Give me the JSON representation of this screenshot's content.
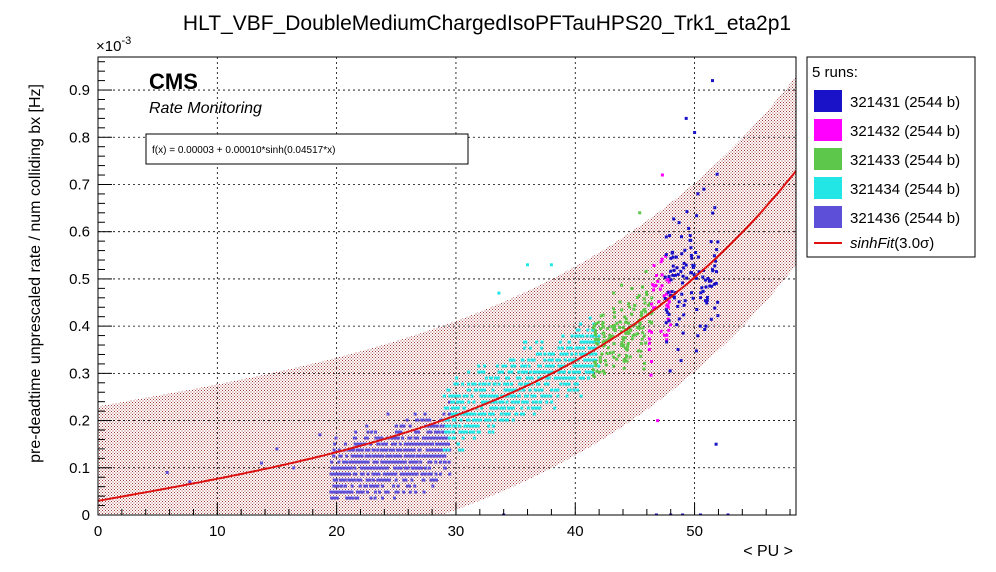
{
  "chart_data": {
    "type": "scatter",
    "title": "HLT_VBF_DoubleMediumChargedIsoPFTauHPS20_Trk1_eta2p1",
    "xlabel": "< PU >",
    "ylabel": "pre-deadtime unprescaled rate / num colliding bx [Hz]",
    "y_exponent_label": "×10",
    "y_exponent_power": "-3",
    "xlim": [
      0,
      58.5
    ],
    "ylim": [
      0,
      0.00097
    ],
    "x_ticks": [
      "0",
      "10",
      "20",
      "30",
      "40",
      "50"
    ],
    "y_ticks": [
      "0",
      "0.1",
      "0.2",
      "0.3",
      "0.4",
      "0.5",
      "0.6",
      "0.7",
      "0.8",
      "0.9"
    ],
    "grid": true,
    "legend_position": "right",
    "legend_header": "5 runs:",
    "annotations": {
      "experiment": "CMS",
      "subtitle": "Rate Monitoring",
      "fit_formula": "f(x) = 0.00003 + 0.00010*sinh(0.04517*x)"
    },
    "fit": {
      "name": "sinhFit",
      "sigma_label": "(3.0σ)",
      "a": 3e-05,
      "b": 0.0001,
      "c": 0.04517,
      "band_half_width": 0.0002,
      "color": "#dd1111",
      "band_color": "#a33a3a"
    },
    "series": [
      {
        "name": "321431 (2544 b)",
        "color": "#1a12c8",
        "x_range": [
          47.5,
          52.0
        ],
        "y_center_offset": 0.0,
        "spread": 0.00012,
        "count": 120
      },
      {
        "name": "321432 (2544 b)",
        "color": "#ff00ff",
        "x_range": [
          46.2,
          48.0
        ],
        "y_center_offset": 0.0,
        "spread": 0.0001,
        "count": 45
      },
      {
        "name": "321433 (2544 b)",
        "color": "#5cc74a",
        "x_range": [
          41.5,
          46.5
        ],
        "y_center_offset": 0.0,
        "spread": 7e-05,
        "count": 160
      },
      {
        "name": "321434 (2544 b)",
        "color": "#22e6e6",
        "x_range": [
          29.0,
          42.0
        ],
        "y_center_offset": 0.0,
        "spread": 6e-05,
        "count": 620
      },
      {
        "name": "321436 (2544 b)",
        "color": "#5d4fd8",
        "x_range": [
          19.5,
          29.5
        ],
        "y_center_offset": -5e-05,
        "spread": 6e-05,
        "count": 620
      }
    ],
    "outliers": [
      {
        "x": 51.5,
        "y": 0.00092,
        "series": 0
      },
      {
        "x": 49.3,
        "y": 0.00084,
        "series": 0
      },
      {
        "x": 50.0,
        "y": 0.00081,
        "series": 0
      },
      {
        "x": 51.8,
        "y": 0.00015,
        "series": 0
      },
      {
        "x": 47.3,
        "y": 0.00072,
        "series": 1
      },
      {
        "x": 46.9,
        "y": 0.0002,
        "series": 1
      },
      {
        "x": 45.4,
        "y": 0.00064,
        "series": 2
      },
      {
        "x": 38.0,
        "y": 0.00053,
        "series": 3
      },
      {
        "x": 33.6,
        "y": 0.00047,
        "series": 3
      },
      {
        "x": 36.0,
        "y": 0.00053,
        "series": 3
      },
      {
        "x": 5.8,
        "y": 9e-05,
        "series": 4
      },
      {
        "x": 7.7,
        "y": 7e-05,
        "series": 4
      },
      {
        "x": 13.7,
        "y": 0.00011,
        "series": 4
      },
      {
        "x": 16.4,
        "y": 0.0001,
        "series": 4
      },
      {
        "x": 18.6,
        "y": 0.00017,
        "series": 4
      },
      {
        "x": 15.0,
        "y": 0.00014,
        "series": 4
      },
      {
        "x": 34.0,
        "y": 0.0,
        "series": 0
      },
      {
        "x": 46.8,
        "y": 0.0,
        "series": 0
      },
      {
        "x": 48.0,
        "y": 0.0,
        "series": 0
      },
      {
        "x": 49.0,
        "y": 0.0,
        "series": 0
      },
      {
        "x": 50.5,
        "y": 0.0,
        "series": 0
      },
      {
        "x": 52.8,
        "y": 0.0,
        "series": 0
      }
    ]
  }
}
